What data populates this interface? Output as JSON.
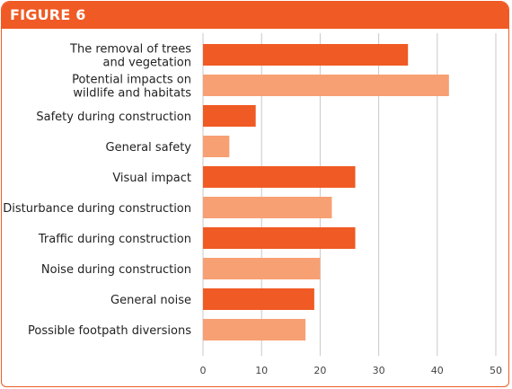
{
  "figure": {
    "label": "FIGURE 6"
  },
  "colors": {
    "accent": "#f05a24",
    "bar_dark": "#f05a24",
    "bar_light": "#f7a074",
    "grid": "#c8c8c8"
  },
  "chart_data": {
    "type": "bar",
    "orientation": "horizontal",
    "title": "",
    "xlabel": "",
    "ylabel": "",
    "categories": [
      [
        "The removal of trees",
        "and vegetation"
      ],
      [
        "Potential impacts on",
        "wildlife and habitats"
      ],
      [
        "Safety during construction"
      ],
      [
        "General safety"
      ],
      [
        "Visual impact"
      ],
      [
        "Disturbance during construction"
      ],
      [
        "Traffic during construction"
      ],
      [
        "Noise during construction"
      ],
      [
        "General noise"
      ],
      [
        "Possible footpath diversions"
      ]
    ],
    "values": [
      35,
      42,
      9,
      4.5,
      26,
      22,
      26,
      20,
      19,
      17.5
    ],
    "bar_colors": [
      "dark",
      "light",
      "dark",
      "light",
      "dark",
      "light",
      "dark",
      "light",
      "dark",
      "light"
    ],
    "xlim": [
      0,
      50
    ],
    "xticks": [
      "0",
      "10",
      "20",
      "30",
      "40",
      "50"
    ],
    "grid": "vertical",
    "legend": "none"
  }
}
